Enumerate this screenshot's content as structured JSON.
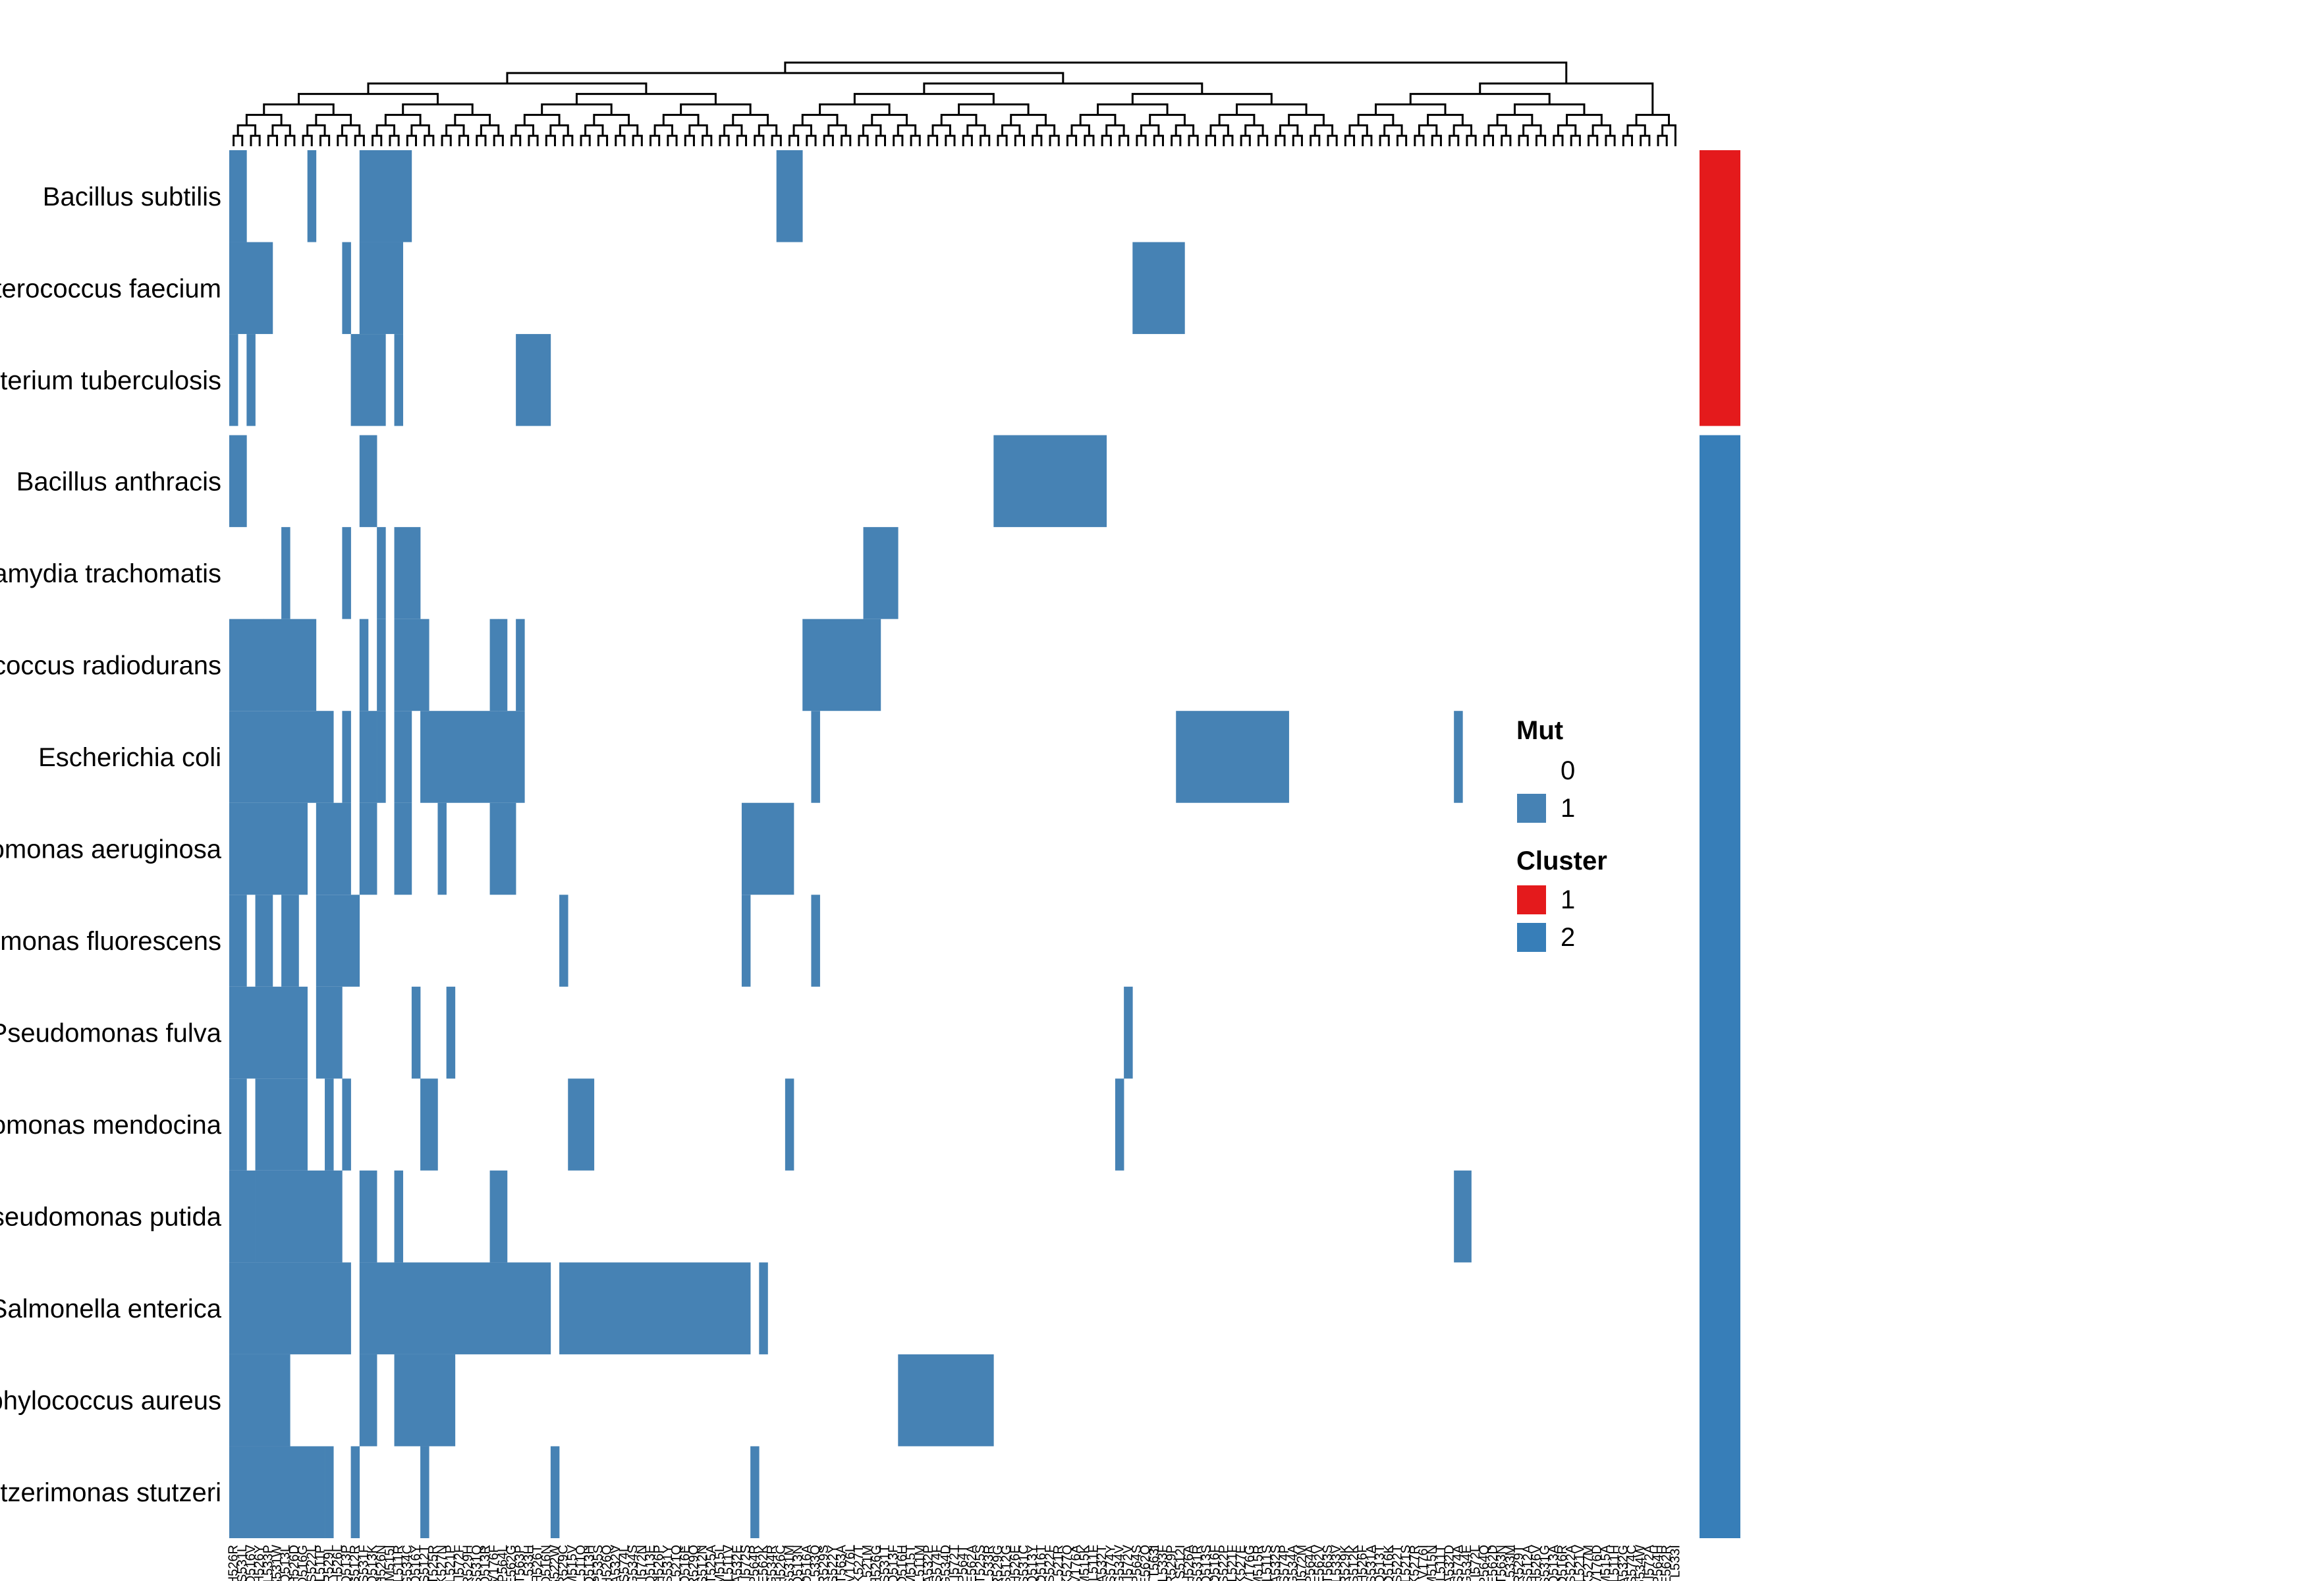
{
  "chart_data": {
    "type": "heatmap",
    "title": "",
    "rows": [
      "Bacillus subtilis",
      "Enterococcus faecium",
      "Mycobacterium tuberculosis",
      "Bacillus anthracis",
      "Chlamydia trachomatis",
      "Deinococcus radiodurans",
      "Escherichia coli",
      "Pseudomonas aeruginosa",
      "Pseudomonas fluorescens",
      "Pseudomonas fulva",
      "Pseudomonas mendocina",
      "Pseudomonas putida",
      "Salmonella enterica",
      "Staphylococcus aureus",
      "Stutzerimonas stutzeri"
    ],
    "row_clusters": [
      1,
      1,
      1,
      2,
      2,
      2,
      2,
      2,
      2,
      2,
      2,
      2,
      2,
      2,
      2
    ],
    "n_columns": 167,
    "columns": [
      "H526R",
      "S531L",
      "D516V",
      "H526Y",
      "L533P",
      "S531W",
      "Q513L",
      "H526D",
      "D516G",
      "S522L",
      "L511P",
      "R529L",
      "H526L",
      "Q513P",
      "S512R",
      "S531F",
      "Q513K",
      "H526N",
      "M515I",
      "L511R",
      "G534C",
      "D516Y",
      "S512T",
      "T525R",
      "K527N",
      "L521P",
      "I572F",
      "R529H",
      "S531Q",
      "Q513R",
      "V176F",
      "P564L",
      "E562G",
      "T563P",
      "L533H",
      "H526T",
      "D516N",
      "S522W",
      "R529C",
      "M515V",
      "L511Q",
      "Q513H",
      "P535S",
      "H526Q",
      "A532V",
      "S574L",
      "G534S",
      "I572N",
      "Q513E",
      "H526P",
      "S531Y",
      "L521Q",
      "D516E",
      "R529Q",
      "S512N",
      "T525A",
      "M515L",
      "L511V",
      "A532E",
      "I572S",
      "P564R",
      "E562K",
      "G534R",
      "H526C",
      "S531M",
      "Q513N",
      "D516A",
      "L533Q",
      "R529S",
      "S522Y",
      "T563A",
      "V176L",
      "K527T",
      "L521M",
      "H526G",
      "S531T",
      "Q513F",
      "D516H",
      "M515T",
      "L511M",
      "A532P",
      "S574F",
      "G534D",
      "I572T",
      "P564T",
      "E562A",
      "T525S",
      "L533R",
      "R529G",
      "S512G",
      "H526E",
      "S531C",
      "Q513Y",
      "D516T",
      "S522F",
      "L521R",
      "K527Q",
      "V176A",
      "M515K",
      "L511F",
      "A532T",
      "S574Y",
      "G534V",
      "I572V",
      "P564S",
      "E562Q",
      "T563I",
      "L533F",
      "R529P",
      "S512I",
      "H526A",
      "S531R",
      "Q513S",
      "D516F",
      "S522P",
      "L521F",
      "K527E",
      "V176G",
      "M515R",
      "L511S",
      "A532S",
      "S574P",
      "G534A",
      "I572M",
      "P564A",
      "E562V",
      "T563S",
      "L533V",
      "R529K",
      "S512K",
      "H526F",
      "S531A",
      "Q513T",
      "D516K",
      "S522T",
      "L521S",
      "K527R",
      "V176I",
      "M515N",
      "L511T",
      "A532D",
      "S574A",
      "G534E",
      "I572L",
      "P564Q",
      "E562D",
      "T563N",
      "L533M",
      "R529T",
      "S512A",
      "H526V",
      "S531G",
      "Q513A",
      "D516R",
      "S522A",
      "L521V",
      "K527M",
      "V176D",
      "M515A",
      "L511H",
      "A532G",
      "S574C",
      "G534W",
      "I572A",
      "P564H",
      "E562R",
      "L533I"
    ],
    "cells": [
      [
        [
          0,
          1
        ],
        [
          9,
          9
        ],
        [
          15,
          20
        ],
        [
          63,
          65
        ]
      ],
      [
        [
          0,
          4
        ],
        [
          13,
          13
        ],
        [
          15,
          19
        ],
        [
          104,
          109
        ]
      ],
      [
        [
          0,
          0
        ],
        [
          2,
          2
        ],
        [
          14,
          17
        ],
        [
          19,
          19
        ],
        [
          33,
          36
        ]
      ],
      [
        [
          0,
          1
        ],
        [
          15,
          16
        ],
        [
          88,
          100
        ]
      ],
      [
        [
          6,
          6
        ],
        [
          13,
          13
        ],
        [
          17,
          17
        ],
        [
          19,
          21
        ],
        [
          73,
          76
        ]
      ],
      [
        [
          0,
          3
        ],
        [
          4,
          9
        ],
        [
          15,
          15
        ],
        [
          17,
          17
        ],
        [
          19,
          22
        ],
        [
          30,
          30
        ],
        [
          31,
          31
        ],
        [
          33,
          33
        ],
        [
          66,
          74
        ]
      ],
      [
        [
          0,
          7
        ],
        [
          8,
          11
        ],
        [
          13,
          13
        ],
        [
          15,
          16
        ],
        [
          17,
          17
        ],
        [
          19,
          20
        ],
        [
          22,
          30
        ],
        [
          31,
          33
        ],
        [
          67,
          67
        ],
        [
          109,
          121
        ],
        [
          141,
          141
        ]
      ],
      [
        [
          0,
          8
        ],
        [
          10,
          13
        ],
        [
          15,
          16
        ],
        [
          19,
          20
        ],
        [
          24,
          24
        ],
        [
          30,
          32
        ],
        [
          59,
          64
        ]
      ],
      [
        [
          0,
          1
        ],
        [
          3,
          4
        ],
        [
          6,
          7
        ],
        [
          10,
          14
        ],
        [
          38,
          38
        ],
        [
          59,
          59
        ],
        [
          67,
          67
        ]
      ],
      [
        [
          0,
          8
        ],
        [
          10,
          12
        ],
        [
          21,
          21
        ],
        [
          25,
          25
        ],
        [
          103,
          103
        ]
      ],
      [
        [
          0,
          1
        ],
        [
          3,
          8
        ],
        [
          11,
          11
        ],
        [
          13,
          13
        ],
        [
          22,
          23
        ],
        [
          39,
          41
        ],
        [
          64,
          64
        ],
        [
          102,
          102
        ]
      ],
      [
        [
          0,
          2
        ],
        [
          3,
          3
        ],
        [
          4,
          12
        ],
        [
          15,
          16
        ],
        [
          19,
          19
        ],
        [
          30,
          31
        ],
        [
          141,
          142
        ]
      ],
      [
        [
          0,
          13
        ],
        [
          15,
          36
        ],
        [
          38,
          59
        ],
        [
          61,
          61
        ]
      ],
      [
        [
          0,
          1
        ],
        [
          2,
          6
        ],
        [
          15,
          16
        ],
        [
          19,
          25
        ],
        [
          77,
          87
        ]
      ],
      [
        [
          0,
          10
        ],
        [
          11,
          11
        ],
        [
          14,
          14
        ],
        [
          22,
          22
        ],
        [
          37,
          37
        ],
        [
          60,
          60
        ]
      ]
    ],
    "legend": {
      "mut_title": "Mut",
      "mut_levels": [
        "0",
        "1"
      ],
      "mut_colors": [
        "#ffffff",
        "#4682b4"
      ],
      "cluster_title": "Cluster",
      "cluster_levels": [
        "1",
        "2"
      ],
      "cluster_colors": [
        "#e41a1c",
        "#377eb8"
      ]
    },
    "legend_placement": "right",
    "row_annotation_placement": "right",
    "column_dendrogram": true,
    "grid": false
  }
}
